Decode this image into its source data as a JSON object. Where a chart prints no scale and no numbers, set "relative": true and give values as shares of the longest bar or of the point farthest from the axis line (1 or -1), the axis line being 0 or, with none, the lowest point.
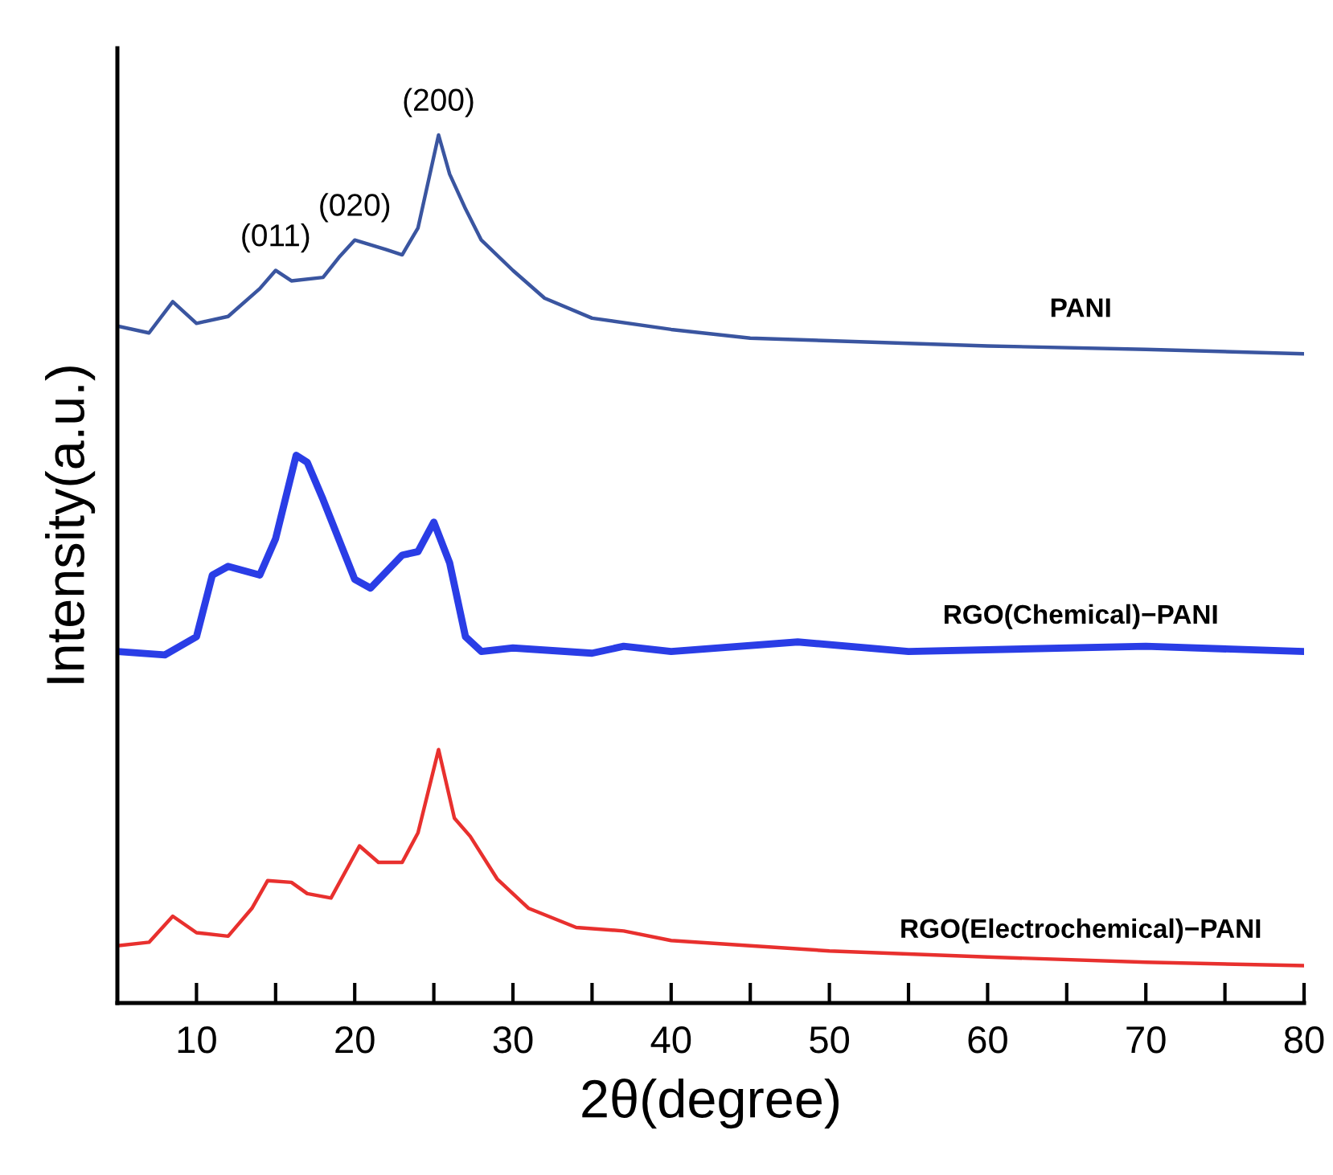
{
  "chart_data": {
    "type": "line",
    "relative": true,
    "xlabel": "2θ(degree)",
    "ylabel": "Intensity(a.u.)",
    "xlim": [
      5,
      80
    ],
    "xticks": [
      10,
      {
        "value": 15,
        "label": null
      },
      20,
      {
        "value": 25,
        "label": null
      },
      30,
      {
        "value": 35,
        "label": null
      },
      40,
      {
        "value": 45,
        "label": null
      },
      50,
      {
        "value": 55,
        "label": null
      },
      60,
      {
        "value": 65,
        "label": null
      },
      70,
      {
        "value": 75,
        "label": null
      },
      80
    ],
    "grid": false,
    "legend": false,
    "marker": "none",
    "line_style": "solid",
    "series": [
      {
        "name": "PANI",
        "color": "#3a55a0",
        "x": [
          5,
          7,
          8.5,
          10,
          12,
          14,
          15,
          16,
          18,
          19,
          20,
          22,
          23,
          24,
          25.3,
          26,
          27,
          28,
          30,
          32,
          35,
          40,
          45,
          50,
          60,
          70,
          80
        ],
        "values": [
          0.78,
          0.772,
          0.808,
          0.783,
          0.791,
          0.823,
          0.844,
          0.832,
          0.836,
          0.859,
          0.879,
          0.868,
          0.862,
          0.893,
          1.0,
          0.955,
          0.915,
          0.879,
          0.844,
          0.812,
          0.789,
          0.776,
          0.766,
          0.763,
          0.757,
          0.753,
          0.748
        ]
      },
      {
        "name": "RGO(Chemical)−PANI",
        "color": "#2a3de6",
        "x": [
          5,
          8,
          10,
          11,
          12,
          14,
          15,
          16.3,
          17,
          18,
          20,
          21,
          23,
          24,
          25,
          26,
          27,
          28,
          30,
          35,
          37,
          40,
          48,
          55,
          70,
          80
        ],
        "values": [
          0.405,
          0.401,
          0.422,
          0.493,
          0.503,
          0.493,
          0.535,
          0.631,
          0.623,
          0.58,
          0.488,
          0.478,
          0.516,
          0.52,
          0.554,
          0.507,
          0.422,
          0.405,
          0.409,
          0.403,
          0.411,
          0.405,
          0.416,
          0.405,
          0.411,
          0.405
        ]
      },
      {
        "name": "RGO(Electrochemical)−PANI",
        "color": "#e8302e",
        "x": [
          5,
          7,
          8.5,
          10,
          12,
          13.5,
          14.5,
          16,
          17,
          18.5,
          20.3,
          21.5,
          23,
          24,
          25.3,
          26.3,
          27.3,
          29,
          31,
          34,
          37,
          40,
          45,
          50,
          60,
          70,
          80
        ],
        "values": [
          0.066,
          0.07,
          0.1,
          0.081,
          0.077,
          0.109,
          0.141,
          0.139,
          0.126,
          0.121,
          0.181,
          0.162,
          0.162,
          0.196,
          0.292,
          0.213,
          0.192,
          0.143,
          0.109,
          0.087,
          0.083,
          0.072,
          0.066,
          0.06,
          0.053,
          0.047,
          0.043
        ]
      }
    ],
    "annotations": [
      {
        "text": "(011)",
        "x": 15,
        "y": 0.844
      },
      {
        "text": "(020)",
        "x": 20,
        "y": 0.879
      },
      {
        "text": "(200)",
        "x": 25.3,
        "y": 1.0
      }
    ]
  }
}
